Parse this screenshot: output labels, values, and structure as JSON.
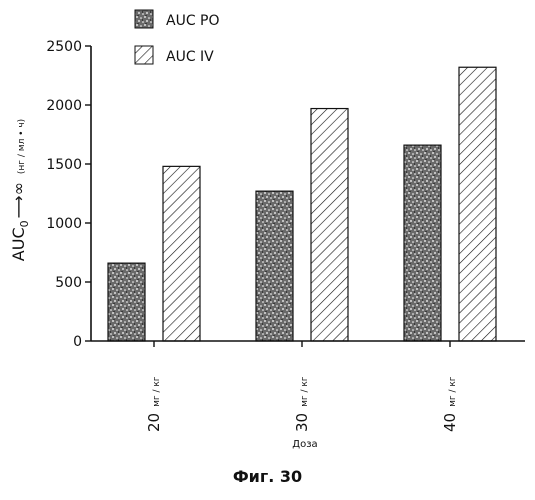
{
  "chart_data": {
    "type": "bar",
    "categories": [
      "20",
      "30",
      "40"
    ],
    "category_unit": "мг / кг",
    "series": [
      {
        "name": "AUC PO",
        "values": [
          660,
          1270,
          1660
        ]
      },
      {
        "name": "AUC IV",
        "values": [
          1480,
          1970,
          2320
        ]
      }
    ],
    "ylim": [
      0,
      2500
    ],
    "yticks": [
      "0",
      "500",
      "1000",
      "1500",
      "2000",
      "2500"
    ],
    "ylabel": {
      "main": "AUC",
      "subscript": "0",
      "arrow": "⟶",
      "infinity": "∞",
      "unit": "(нг / мл • ч)"
    },
    "xlabel": "Доза",
    "legend_position": "top-center",
    "series_patterns": [
      "stipple",
      "diagonal-hatch"
    ]
  },
  "caption": "Фиг. 30"
}
